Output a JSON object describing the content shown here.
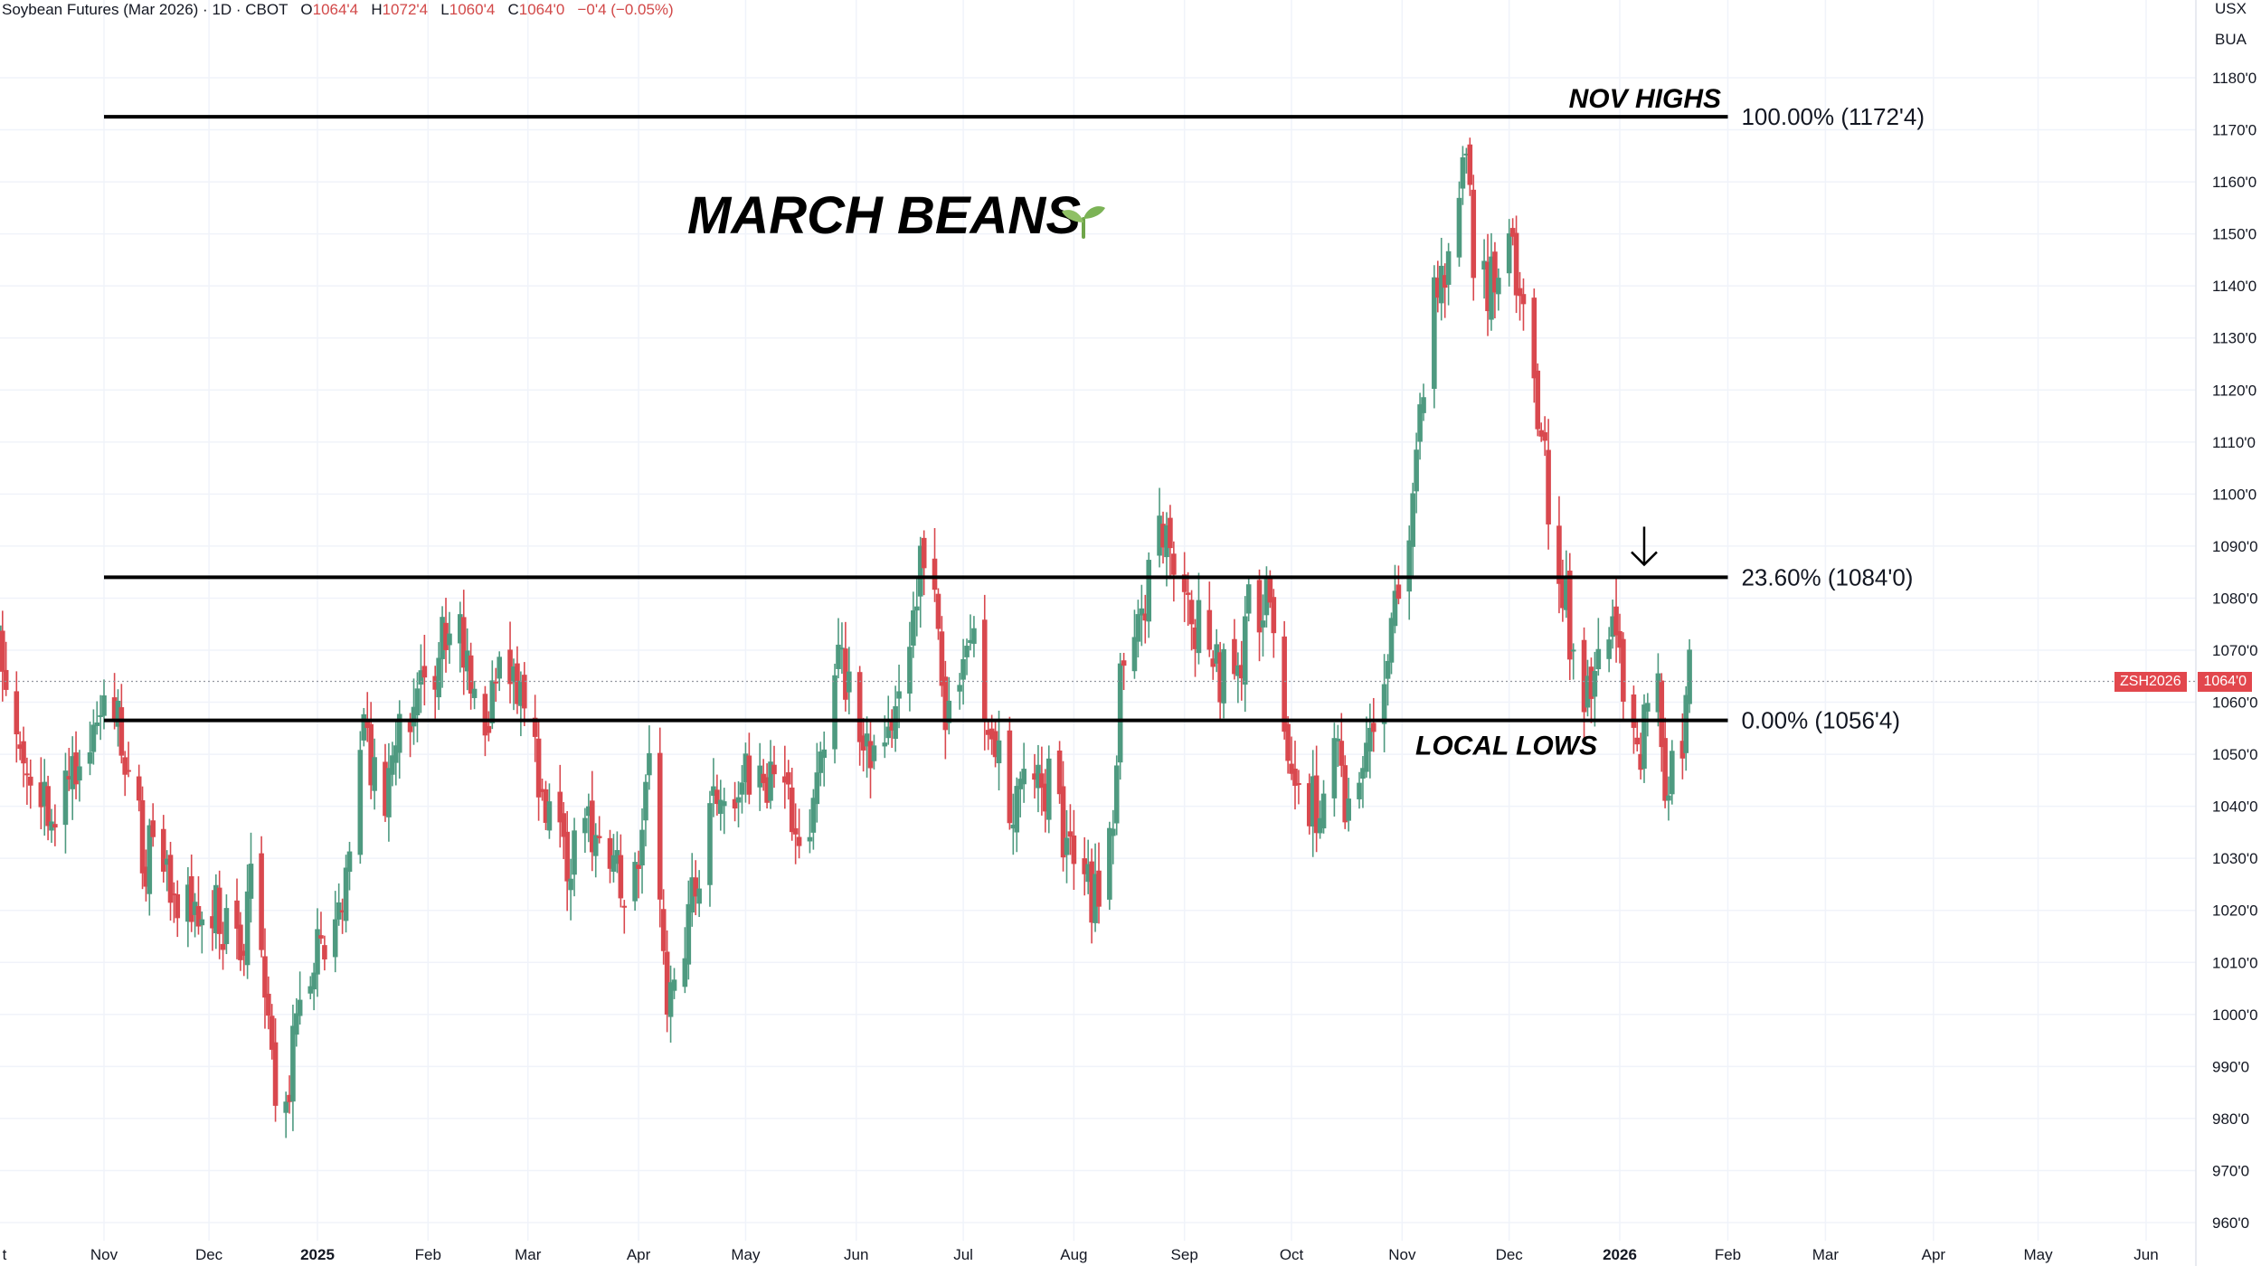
{
  "header": {
    "symbol": "Soybean Futures (Mar 2026) · 1D · CBOT",
    "o_label": "O",
    "o_value": "1064'4",
    "h_label": "H",
    "h_value": "1072'4",
    "l_label": "L",
    "l_value": "1060'4",
    "c_label": "C",
    "c_value": "1064'0",
    "change": "−0'4 (−0.05%)"
  },
  "scale": {
    "currency": "USX",
    "unit": "BUA"
  },
  "price_tag": {
    "symbol": "ZSH2026",
    "price": "1064'0"
  },
  "colors": {
    "up": "#4e9a80",
    "down": "#d9484e",
    "tag": "#e2474d",
    "grid": "#f0f3fa",
    "line": "#000000"
  },
  "chart_data": {
    "type": "candlestick",
    "title": "MARCH BEANS",
    "title_icon": "seedling-icon",
    "y_axis": {
      "range": [
        955,
        1188
      ],
      "ticks": [
        960,
        970,
        980,
        990,
        1000,
        1010,
        1020,
        1030,
        1040,
        1050,
        1060,
        1070,
        1080,
        1090,
        1100,
        1110,
        1120,
        1130,
        1140,
        1150,
        1160,
        1170,
        1180
      ],
      "tick_labels": [
        "960'0",
        "970'0",
        "980'0",
        "990'0",
        "1000'0",
        "1010'0",
        "1020'0",
        "1030'0",
        "1040'0",
        "1050'0",
        "1060'0",
        "1070'0",
        "1080'0",
        "1090'0",
        "1100'0",
        "1110'0",
        "1120'0",
        "1130'0",
        "1140'0",
        "1150'0",
        "1160'0",
        "1170'0",
        "1180'0"
      ]
    },
    "x_axis": {
      "labels": [
        {
          "text": "t",
          "date": "2024-10-01",
          "bold": false
        },
        {
          "text": "Nov",
          "date": "2024-11-01",
          "bold": false
        },
        {
          "text": "Dec",
          "date": "2024-12-01",
          "bold": false
        },
        {
          "text": "2025",
          "date": "2025-01-01",
          "bold": true
        },
        {
          "text": "Feb",
          "date": "2025-02-01",
          "bold": false
        },
        {
          "text": "Mar",
          "date": "2025-03-01",
          "bold": false
        },
        {
          "text": "Apr",
          "date": "2025-04-01",
          "bold": false
        },
        {
          "text": "May",
          "date": "2025-05-01",
          "bold": false
        },
        {
          "text": "Jun",
          "date": "2025-06-01",
          "bold": false
        },
        {
          "text": "Jul",
          "date": "2025-07-01",
          "bold": false
        },
        {
          "text": "Aug",
          "date": "2025-08-01",
          "bold": false
        },
        {
          "text": "Sep",
          "date": "2025-09-01",
          "bold": false
        },
        {
          "text": "Oct",
          "date": "2025-10-01",
          "bold": false
        },
        {
          "text": "Nov",
          "date": "2025-11-01",
          "bold": false
        },
        {
          "text": "Dec",
          "date": "2025-12-01",
          "bold": false
        },
        {
          "text": "2026",
          "date": "2026-01-01",
          "bold": true
        },
        {
          "text": "Feb",
          "date": "2026-02-01",
          "bold": false
        },
        {
          "text": "Mar",
          "date": "2026-03-01",
          "bold": false
        },
        {
          "text": "Apr",
          "date": "2026-04-01",
          "bold": false
        },
        {
          "text": "May",
          "date": "2026-05-01",
          "bold": false
        },
        {
          "text": "Jun",
          "date": "2026-06-01",
          "bold": false
        }
      ]
    },
    "price_path": [
      [
        "2024-09-27",
        1100
      ],
      [
        "2024-10-04",
        1062
      ],
      [
        "2024-10-10",
        1050
      ],
      [
        "2024-10-18",
        1038
      ],
      [
        "2024-10-25",
        1048
      ],
      [
        "2024-11-01",
        1062
      ],
      [
        "2024-11-05",
        1058
      ],
      [
        "2024-11-12",
        1032
      ],
      [
        "2024-11-19",
        1025
      ],
      [
        "2024-11-26",
        1020
      ],
      [
        "2024-12-03",
        1018
      ],
      [
        "2024-12-10",
        1014
      ],
      [
        "2024-12-13",
        1022
      ],
      [
        "2024-12-17",
        1008
      ],
      [
        "2024-12-20",
        980
      ],
      [
        "2024-12-26",
        995
      ],
      [
        "2024-12-31",
        1015
      ],
      [
        "2025-01-08",
        1020
      ],
      [
        "2025-01-13",
        1055
      ],
      [
        "2025-01-20",
        1042
      ],
      [
        "2025-01-27",
        1058
      ],
      [
        "2025-02-03",
        1065
      ],
      [
        "2025-02-07",
        1075
      ],
      [
        "2025-02-12",
        1068
      ],
      [
        "2025-02-18",
        1058
      ],
      [
        "2025-02-24",
        1070
      ],
      [
        "2025-03-01",
        1060
      ],
      [
        "2025-03-05",
        1042
      ],
      [
        "2025-03-10",
        1030
      ],
      [
        "2025-03-17",
        1036
      ],
      [
        "2025-03-24",
        1025
      ],
      [
        "2025-03-31",
        1028
      ],
      [
        "2025-04-04",
        1045
      ],
      [
        "2025-04-09",
        996
      ],
      [
        "2025-04-14",
        1015
      ],
      [
        "2025-04-21",
        1042
      ],
      [
        "2025-04-28",
        1045
      ],
      [
        "2025-05-05",
        1048
      ],
      [
        "2025-05-12",
        1040
      ],
      [
        "2025-05-19",
        1038
      ],
      [
        "2025-05-22",
        1050
      ],
      [
        "2025-05-26",
        1072
      ],
      [
        "2025-06-02",
        1058
      ],
      [
        "2025-06-06",
        1048
      ],
      [
        "2025-06-09",
        1050
      ],
      [
        "2025-06-13",
        1062
      ],
      [
        "2025-06-19",
        1090
      ],
      [
        "2025-06-23",
        1078
      ],
      [
        "2025-06-26",
        1052
      ],
      [
        "2025-06-30",
        1058
      ],
      [
        "2025-07-03",
        1074
      ],
      [
        "2025-07-08",
        1052
      ],
      [
        "2025-07-15",
        1040
      ],
      [
        "2025-07-22",
        1050
      ],
      [
        "2025-07-29",
        1034
      ],
      [
        "2025-08-05",
        1022
      ],
      [
        "2025-08-08",
        1025
      ],
      [
        "2025-08-12",
        1040
      ],
      [
        "2025-08-14",
        1065
      ],
      [
        "2025-08-19",
        1072
      ],
      [
        "2025-08-25",
        1090
      ],
      [
        "2025-09-01",
        1082
      ],
      [
        "2025-09-08",
        1068
      ],
      [
        "2025-09-15",
        1065
      ],
      [
        "2025-09-19",
        1078
      ],
      [
        "2025-09-24",
        1080
      ],
      [
        "2025-09-29",
        1050
      ],
      [
        "2025-10-03",
        1042
      ],
      [
        "2025-10-08",
        1040
      ],
      [
        "2025-10-13",
        1054
      ],
      [
        "2025-10-17",
        1040
      ],
      [
        "2025-10-22",
        1050
      ],
      [
        "2025-10-29",
        1072
      ],
      [
        "2025-11-03",
        1092
      ],
      [
        "2025-11-06",
        1118
      ],
      [
        "2025-11-10",
        1140
      ],
      [
        "2025-11-14",
        1142
      ],
      [
        "2025-11-17",
        1155
      ],
      [
        "2025-11-19",
        1168
      ],
      [
        "2025-11-21",
        1148
      ],
      [
        "2025-11-25",
        1136
      ],
      [
        "2025-11-28",
        1145
      ],
      [
        "2025-12-02",
        1146
      ],
      [
        "2025-12-05",
        1130
      ],
      [
        "2025-12-09",
        1112
      ],
      [
        "2025-12-12",
        1100
      ],
      [
        "2025-12-16",
        1085
      ],
      [
        "2025-12-19",
        1070
      ],
      [
        "2025-12-23",
        1062
      ],
      [
        "2025-12-26",
        1068
      ],
      [
        "2025-12-30",
        1074
      ],
      [
        "2026-01-02",
        1064
      ],
      [
        "2026-01-06",
        1048
      ],
      [
        "2026-01-09",
        1060
      ],
      [
        "2026-01-12",
        1064
      ],
      [
        "2026-01-14",
        1040
      ],
      [
        "2026-01-16",
        1050
      ],
      [
        "2026-01-19",
        1056
      ],
      [
        "2026-01-21",
        1064
      ]
    ],
    "fib_levels": [
      {
        "label": "100.00% (1172'4)",
        "value": 1172.5,
        "start": "2024-11-01",
        "end": "2026-02-01"
      },
      {
        "label": "23.60% (1084'0)",
        "value": 1084.0,
        "start": "2024-11-01",
        "end": "2026-02-01"
      },
      {
        "label": "0.00% (1056'4)",
        "value": 1056.5,
        "start": "2024-11-01",
        "end": "2026-02-01"
      }
    ],
    "annotations": [
      {
        "text": "NOV HIGHS",
        "near": "100.00%"
      },
      {
        "text": "LOCAL LOWS",
        "near": "0.00%"
      }
    ],
    "arrow": {
      "date": "2026-01-08",
      "direction": "down"
    },
    "last_price": 1064.0
  }
}
